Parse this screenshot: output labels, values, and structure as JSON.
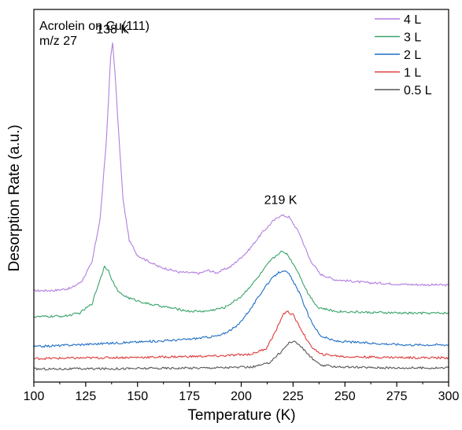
{
  "chart_data": {
    "type": "line",
    "annotation_lines": [
      "Acrolein on Cu(111)",
      "m/z 27"
    ],
    "xlabel": "Temperature (K)",
    "ylabel": "Desorption Rate (a.u.)",
    "xlim": [
      100,
      300
    ],
    "ylim": [
      0,
      1
    ],
    "x_ticks": [
      100,
      125,
      150,
      175,
      200,
      225,
      250,
      275,
      300
    ],
    "grid": false,
    "legend_position": "top-right",
    "peak_labels": [
      {
        "text": "138 K",
        "x": 138
      },
      {
        "text": "219 K",
        "x": 219
      }
    ],
    "series": [
      {
        "name": "4 L",
        "color": "#b27ee0",
        "points": [
          [
            100,
            0.245
          ],
          [
            110,
            0.246
          ],
          [
            118,
            0.252
          ],
          [
            123,
            0.27
          ],
          [
            128,
            0.32
          ],
          [
            132,
            0.44
          ],
          [
            135,
            0.65
          ],
          [
            137,
            0.87
          ],
          [
            138,
            0.91
          ],
          [
            139,
            0.84
          ],
          [
            141,
            0.66
          ],
          [
            143,
            0.49
          ],
          [
            146,
            0.38
          ],
          [
            150,
            0.34
          ],
          [
            160,
            0.31
          ],
          [
            170,
            0.295
          ],
          [
            180,
            0.292
          ],
          [
            184,
            0.3
          ],
          [
            188,
            0.293
          ],
          [
            195,
            0.31
          ],
          [
            203,
            0.35
          ],
          [
            210,
            0.4
          ],
          [
            215,
            0.43
          ],
          [
            219,
            0.448
          ],
          [
            223,
            0.443
          ],
          [
            228,
            0.4
          ],
          [
            233,
            0.33
          ],
          [
            238,
            0.29
          ],
          [
            245,
            0.275
          ],
          [
            260,
            0.267
          ],
          [
            280,
            0.262
          ],
          [
            300,
            0.26
          ]
        ]
      },
      {
        "name": "3 L",
        "color": "#3aa36b",
        "points": [
          [
            100,
            0.175
          ],
          [
            115,
            0.177
          ],
          [
            122,
            0.185
          ],
          [
            128,
            0.21
          ],
          [
            131,
            0.26
          ],
          [
            134,
            0.31
          ],
          [
            136,
            0.3
          ],
          [
            138,
            0.27
          ],
          [
            141,
            0.24
          ],
          [
            146,
            0.225
          ],
          [
            155,
            0.21
          ],
          [
            165,
            0.2
          ],
          [
            175,
            0.19
          ],
          [
            183,
            0.19
          ],
          [
            192,
            0.2
          ],
          [
            200,
            0.23
          ],
          [
            208,
            0.28
          ],
          [
            214,
            0.325
          ],
          [
            219,
            0.35
          ],
          [
            222,
            0.345
          ],
          [
            227,
            0.3
          ],
          [
            232,
            0.24
          ],
          [
            237,
            0.2
          ],
          [
            245,
            0.19
          ],
          [
            260,
            0.187
          ],
          [
            280,
            0.185
          ],
          [
            300,
            0.185
          ]
        ]
      },
      {
        "name": "2 L",
        "color": "#1f6fc5",
        "points": [
          [
            100,
            0.095
          ],
          [
            120,
            0.1
          ],
          [
            140,
            0.105
          ],
          [
            160,
            0.11
          ],
          [
            175,
            0.115
          ],
          [
            183,
            0.12
          ],
          [
            190,
            0.125
          ],
          [
            198,
            0.15
          ],
          [
            205,
            0.2
          ],
          [
            212,
            0.26
          ],
          [
            217,
            0.29
          ],
          [
            220,
            0.3
          ],
          [
            223,
            0.29
          ],
          [
            228,
            0.24
          ],
          [
            233,
            0.17
          ],
          [
            238,
            0.125
          ],
          [
            245,
            0.11
          ],
          [
            260,
            0.105
          ],
          [
            280,
            0.1
          ],
          [
            300,
            0.1
          ]
        ]
      },
      {
        "name": "1 L",
        "color": "#e03a3a",
        "points": [
          [
            100,
            0.063
          ],
          [
            130,
            0.065
          ],
          [
            160,
            0.067
          ],
          [
            190,
            0.07
          ],
          [
            205,
            0.075
          ],
          [
            212,
            0.09
          ],
          [
            217,
            0.14
          ],
          [
            220,
            0.18
          ],
          [
            222,
            0.19
          ],
          [
            225,
            0.18
          ],
          [
            229,
            0.14
          ],
          [
            233,
            0.1
          ],
          [
            238,
            0.075
          ],
          [
            250,
            0.068
          ],
          [
            275,
            0.066
          ],
          [
            300,
            0.065
          ]
        ]
      },
      {
        "name": "0.5 L",
        "color": "#555555",
        "points": [
          [
            100,
            0.035
          ],
          [
            140,
            0.036
          ],
          [
            180,
            0.038
          ],
          [
            205,
            0.04
          ],
          [
            213,
            0.05
          ],
          [
            219,
            0.08
          ],
          [
            223,
            0.105
          ],
          [
            225,
            0.11
          ],
          [
            228,
            0.1
          ],
          [
            233,
            0.07
          ],
          [
            238,
            0.045
          ],
          [
            250,
            0.04
          ],
          [
            275,
            0.038
          ],
          [
            300,
            0.038
          ]
        ]
      }
    ]
  }
}
